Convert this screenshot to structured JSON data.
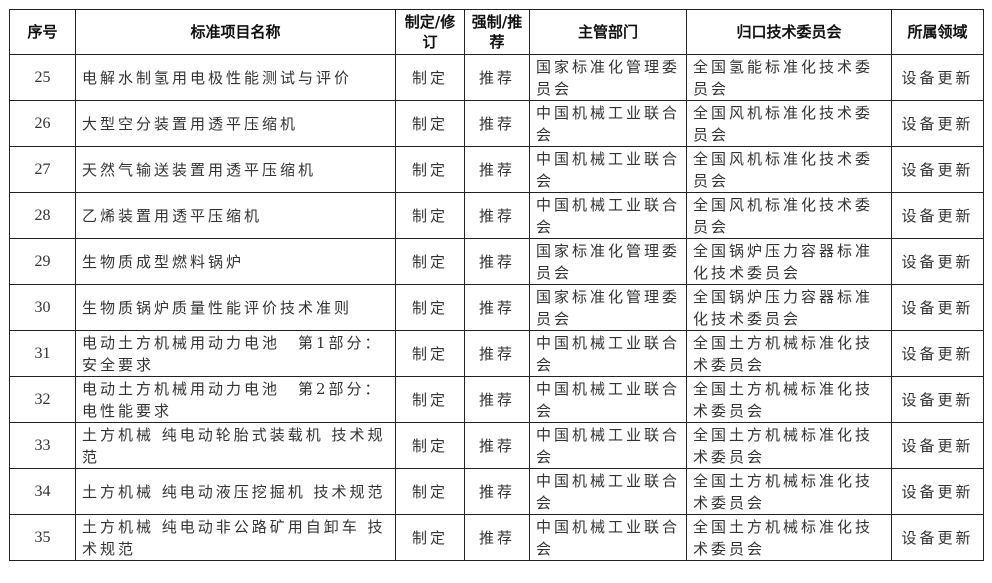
{
  "headers": [
    "序号",
    "标准项目名称",
    "制定/修订",
    "强制/推荐",
    "主管部门",
    "归口技术委员会",
    "所属领域"
  ],
  "rows": [
    {
      "no": "25",
      "name": "电解水制氢用电极性能测试与评价",
      "type": "制定",
      "nature": "推荐",
      "dept": "国家标准化管理委员会",
      "committee": "全国氢能标准化技术委员会",
      "field": "设备更新"
    },
    {
      "no": "26",
      "name": "大型空分装置用透平压缩机",
      "type": "制定",
      "nature": "推荐",
      "dept": "中国机械工业联合会",
      "committee": "全国风机标准化技术委员会",
      "field": "设备更新"
    },
    {
      "no": "27",
      "name": "天然气输送装置用透平压缩机",
      "type": "制定",
      "nature": "推荐",
      "dept": "中国机械工业联合会",
      "committee": "全国风机标准化技术委员会",
      "field": "设备更新"
    },
    {
      "no": "28",
      "name": "乙烯装置用透平压缩机",
      "type": "制定",
      "nature": "推荐",
      "dept": "中国机械工业联合会",
      "committee": "全国风机标准化技术委员会",
      "field": "设备更新"
    },
    {
      "no": "29",
      "name": "生物质成型燃料锅炉",
      "type": "制定",
      "nature": "推荐",
      "dept": "国家标准化管理委员会",
      "committee": "全国锅炉压力容器标准化技术委员会",
      "field": "设备更新"
    },
    {
      "no": "30",
      "name": "生物质锅炉质量性能评价技术准则",
      "type": "制定",
      "nature": "推荐",
      "dept": "国家标准化管理委员会",
      "committee": "全国锅炉压力容器标准化技术委员会",
      "field": "设备更新"
    },
    {
      "no": "31",
      "name": "电动土方机械用动力电池　第1部分：安全要求",
      "type": "制定",
      "nature": "推荐",
      "dept": "中国机械工业联合会",
      "committee": "全国土方机械标准化技术委员会",
      "field": "设备更新"
    },
    {
      "no": "32",
      "name": "电动土方机械用动力电池　第2部分：电性能要求",
      "type": "制定",
      "nature": "推荐",
      "dept": "中国机械工业联合会",
      "committee": "全国土方机械标准化技术委员会",
      "field": "设备更新"
    },
    {
      "no": "33",
      "name": "土方机械 纯电动轮胎式装载机 技术规范",
      "type": "制定",
      "nature": "推荐",
      "dept": "中国机械工业联合会",
      "committee": "全国土方机械标准化技术委员会",
      "field": "设备更新"
    },
    {
      "no": "34",
      "name": "土方机械 纯电动液压挖掘机 技术规范",
      "type": "制定",
      "nature": "推荐",
      "dept": "中国机械工业联合会",
      "committee": "全国土方机械标准化技术委员会",
      "field": "设备更新"
    },
    {
      "no": "35",
      "name": "土方机械 纯电动非公路矿用自卸车 技术规范",
      "type": "制定",
      "nature": "推荐",
      "dept": "中国机械工业联合会",
      "committee": "全国土方机械标准化技术委员会",
      "field": "设备更新"
    }
  ]
}
